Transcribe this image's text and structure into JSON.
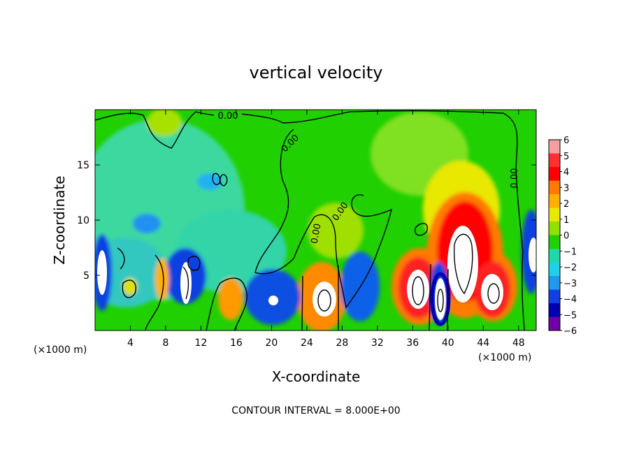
{
  "chart_data": {
    "type": "heatmap",
    "title": "vertical velocity",
    "xlabel": "X-coordinate",
    "ylabel": "Z-coordinate",
    "x_unit_note": "(×1000 m)",
    "xlim": [
      0,
      50
    ],
    "ylim": [
      0,
      20
    ],
    "x_ticks": [
      4,
      8,
      12,
      16,
      20,
      24,
      28,
      32,
      36,
      40,
      44,
      48
    ],
    "y_ticks": [
      5,
      10,
      15
    ],
    "footer": "CONTOUR INTERVAL = 8.000E+00",
    "contour_label": "0.00",
    "colorbar": {
      "levels": [
        6,
        5,
        4,
        3,
        2,
        1,
        0,
        -1,
        -2,
        -3,
        -4,
        -5,
        -6
      ],
      "colors": [
        "#f4a0a0",
        "#ff3030",
        "#ff0000",
        "#ff7a00",
        "#ffb000",
        "#e8e800",
        "#90e000",
        "#20d000",
        "#20d8a8",
        "#20d0e8",
        "#2098f0",
        "#1040e0",
        "#0000b0",
        "#7000a8"
      ]
    },
    "cells": [
      {
        "x": 25.9,
        "z": 2.9,
        "w": 9
      },
      {
        "x": 36.2,
        "z": 3.5,
        "w": 9
      },
      {
        "x": 41.7,
        "z": 6.6,
        "w": 11
      },
      {
        "x": 44.6,
        "z": 3.4,
        "w": 9
      },
      {
        "x": 38.5,
        "z": 2.8,
        "w": -11
      },
      {
        "x": 20.2,
        "z": 2.8,
        "w": -7
      },
      {
        "x": 10.3,
        "z": 5.3,
        "w": -5
      },
      {
        "x": 10.2,
        "z": 4.2,
        "w": 8
      },
      {
        "x": 0.3,
        "z": 5.5,
        "w": -5
      },
      {
        "x": 0.7,
        "z": 5.0,
        "w": 7
      },
      {
        "x": 49.6,
        "z": 6.5,
        "w": -5
      },
      {
        "x": 49.7,
        "z": 6.0,
        "w": 7
      },
      {
        "x": 15.2,
        "z": 2.6,
        "w": 3
      },
      {
        "x": 31.7,
        "z": 5.3,
        "w": -4
      },
      {
        "x": 7.4,
        "z": 4.2,
        "w": 2
      },
      {
        "x": 29.6,
        "z": 3.0,
        "w": -3
      }
    ]
  }
}
